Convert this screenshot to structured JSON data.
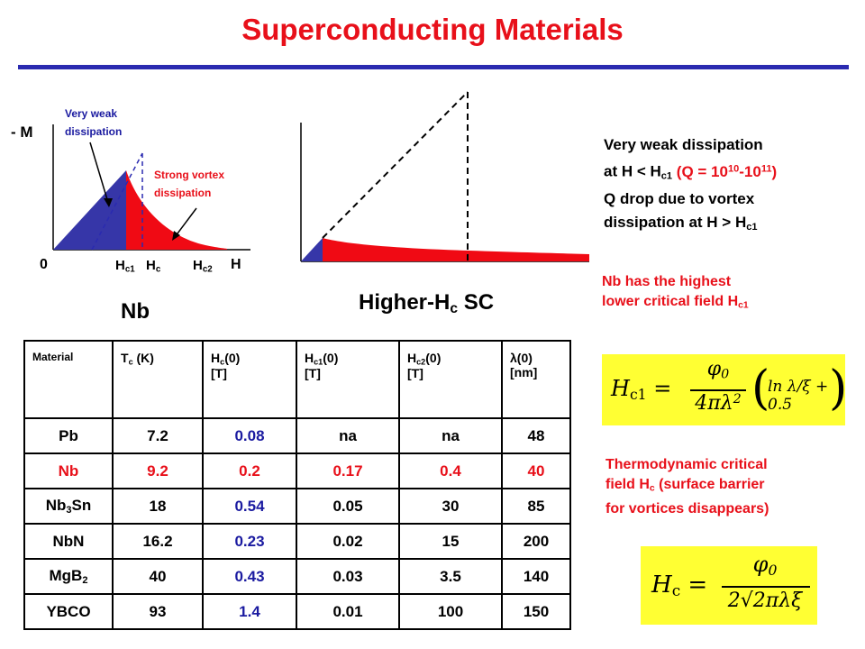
{
  "title": "Superconducting Materials",
  "fig1": {
    "ylabel": "- M",
    "xlabel": "H",
    "origin": "0",
    "ticks": {
      "hc1": "H",
      "hc1_sub": "c1",
      "hc": "H",
      "hc_sub": "c",
      "hc2": "H",
      "hc2_sub": "c2"
    },
    "note_weak": [
      "Very weak",
      "dissipation"
    ],
    "note_strong": [
      "Strong vortex",
      "dissipation"
    ],
    "label": "Nb"
  },
  "fig2": {
    "label": "Higher-H",
    "label_sub": "c",
    "label_tail": " SC"
  },
  "right": {
    "line1": "Very weak dissipation",
    "line2_pre": "at H < H",
    "line2_sub": "c1",
    "line2_red": " (Q = 10",
    "line2_sup1": "10",
    "line2_mid": "-10",
    "line2_sup2": "11",
    "line2_end": ")",
    "line3": "Q drop due to vortex",
    "line4_pre": "dissipation at H > H",
    "line4_sub": "c1",
    "nb_line1": "Nb has the highest",
    "nb_line2_pre": "lower critical field H",
    "nb_line2_sub": "c1",
    "thermo_line1": "Thermodynamic critical",
    "thermo_line2": "field H",
    "thermo_line2_sub": "c",
    "thermo_line2_tail": " (surface barrier",
    "thermo_line3": "for vortices disappears)"
  },
  "formula1": {
    "lhs": "H",
    "lhs_sub": "c1",
    "eq": " = ",
    "num": "φ",
    "num_sub": "0",
    "den": "4πλ",
    "den_sup": "2",
    "paren": "ln λ/ξ + 0.5"
  },
  "formula2": {
    "lhs": "H",
    "lhs_sub": "c",
    "eq": " = ",
    "num": "φ",
    "num_sub": "0",
    "den": "2√2πλξ"
  },
  "table": {
    "headers": [
      {
        "text": "Material"
      },
      {
        "a": "T",
        "sub": "c",
        "b": " (K)"
      },
      {
        "a": "H",
        "sub": "c",
        "b": "(0)",
        "c": "[T]"
      },
      {
        "a": "H",
        "sub": "c1",
        "b": "(0)",
        "c": "[T]"
      },
      {
        "a": "H",
        "sub": "c2",
        "b": "(0)",
        "c": "[T]"
      },
      {
        "a": "λ",
        "b": "(0)",
        "c": "[nm]"
      }
    ],
    "rows": [
      {
        "material": "Pb",
        "tc": "7.2",
        "hc": "0.08",
        "hc1": "na",
        "hc2": "na",
        "lambda": "48"
      },
      {
        "material": "Nb",
        "tc": "9.2",
        "hc": "0.2",
        "hc1": "0.17",
        "hc2": "0.4",
        "lambda": "40"
      },
      {
        "material": "Nb",
        "material_sub": "3",
        "material_tail": "Sn",
        "tc": "18",
        "hc": "0.54",
        "hc1": "0.05",
        "hc2": "30",
        "lambda": "85"
      },
      {
        "material": "NbN",
        "tc": "16.2",
        "hc": "0.23",
        "hc1": "0.02",
        "hc2": "15",
        "lambda": "200"
      },
      {
        "material": "MgB",
        "material_sub": "2",
        "tc": "40",
        "hc": "0.43",
        "hc1": "0.03",
        "hc2": "3.5",
        "lambda": "140"
      },
      {
        "material": "YBCO",
        "tc": "93",
        "hc": "1.4",
        "hc1": "0.01",
        "hc2": "100",
        "lambda": "150"
      }
    ]
  },
  "colors": {
    "red": "#e8101a",
    "blue": "#1a1aa0",
    "fill_blue": "#3636a8",
    "formula_bg": "#ffff33"
  }
}
